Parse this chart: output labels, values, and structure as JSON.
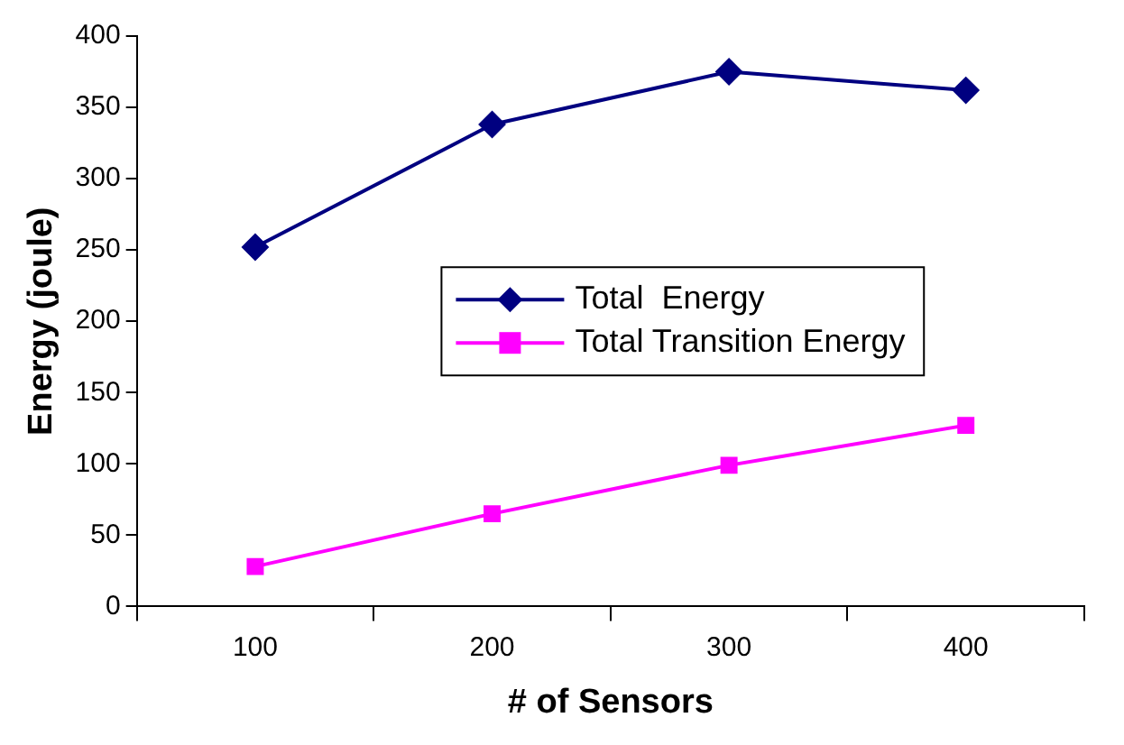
{
  "chart_data": {
    "type": "line",
    "xlabel": "# of Sensors",
    "ylabel": "Energy (joule)",
    "categories": [
      "100",
      "200",
      "300",
      "400"
    ],
    "series": [
      {
        "name": "Total  Energy",
        "color": "#000080",
        "marker": "diamond",
        "values": [
          252,
          338,
          375,
          362
        ]
      },
      {
        "name": "Total Transition Energy",
        "color": "#ff00ff",
        "marker": "square",
        "values": [
          28,
          65,
          99,
          127
        ]
      }
    ],
    "ylim": [
      0,
      400
    ],
    "yticks": [
      0,
      50,
      100,
      150,
      200,
      250,
      300,
      350,
      400
    ],
    "grid": false,
    "legend": "center",
    "line_style": "solid"
  }
}
